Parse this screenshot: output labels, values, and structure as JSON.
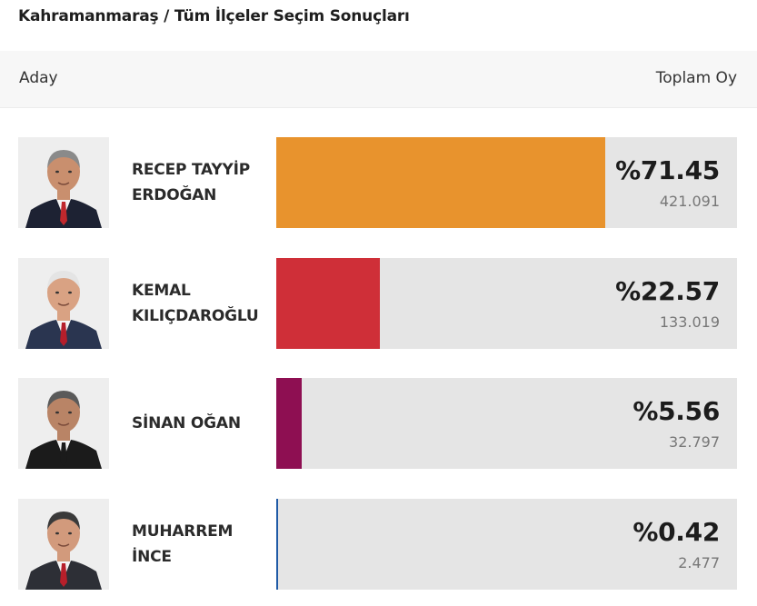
{
  "page": {
    "title": "Kahramanmaraş / Tüm İlçeler Seçim Sonuçları"
  },
  "table": {
    "col_candidate": "Aday",
    "col_total": "Toplam Oy"
  },
  "candidates": [
    {
      "name_line1": "RECEP TAYYİP",
      "name_line2": "ERDOĞAN",
      "percent_label": "%71.45",
      "percent_value": 71.45,
      "votes": "421.091",
      "color": "#e8932d",
      "suit_color": "#1d2233",
      "tie_color": "#c0282d",
      "skin_color": "#c98f6e",
      "hair_color": "#8a8a8a"
    },
    {
      "name_line1": "KEMAL",
      "name_line2": "KILIÇDAROĞLU",
      "percent_label": "%22.57",
      "percent_value": 22.57,
      "votes": "133.019",
      "color": "#cf2f38",
      "suit_color": "#2a3550",
      "tie_color": "#b51e2b",
      "skin_color": "#d9a283",
      "hair_color": "#e4e4e4"
    },
    {
      "name_line1": "SİNAN OĞAN",
      "name_line2": "",
      "percent_label": "%5.56",
      "percent_value": 5.56,
      "votes": "32.797",
      "color": "#8e0f52",
      "suit_color": "#1b1b1b",
      "tie_color": "#1b1b1b",
      "skin_color": "#b98466",
      "hair_color": "#5a5a5a"
    },
    {
      "name_line1": "MUHARREM",
      "name_line2": "İNCE",
      "percent_label": "%0.42",
      "percent_value": 0.42,
      "votes": "2.477",
      "color": "#1f5aa6",
      "suit_color": "#2d2f36",
      "tie_color": "#b71f2a",
      "skin_color": "#d29a7c",
      "hair_color": "#3a3a3a"
    }
  ]
}
